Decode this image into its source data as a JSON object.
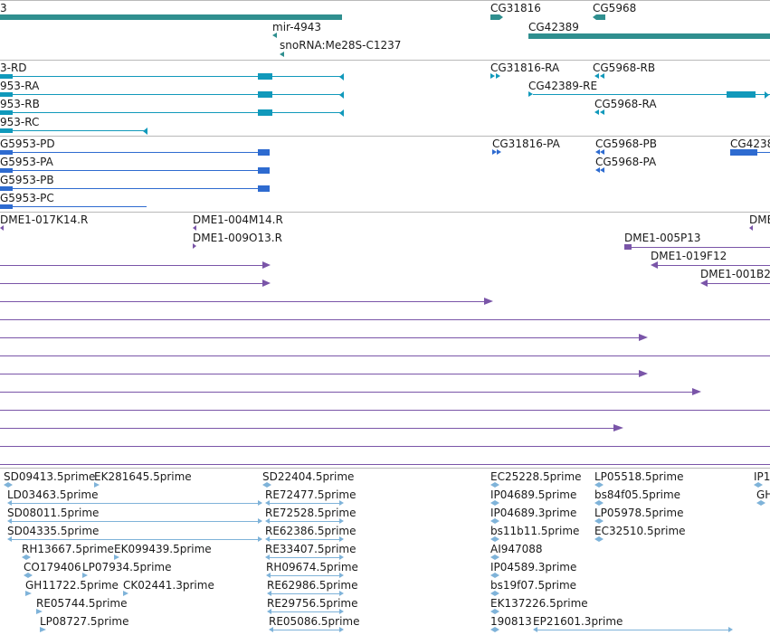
{
  "colors": {
    "gene": "#2f8f8f",
    "mrna": "#1199bb",
    "cds": "#2e6bd0",
    "clone": "#7a55a8",
    "est": "#7fb3d9",
    "separator": "#b9b9b9"
  },
  "tracks": {
    "genes": {
      "labels": [
        "3",
        "mir-4943",
        "snoRNA:Me28S-C1237",
        "CG31816",
        "CG5968",
        "CG42389"
      ]
    },
    "transcripts": {
      "labels": [
        "3-RD",
        "953-RA",
        "953-RB",
        "953-RC",
        "CG31816-RA",
        "CG5968-RB",
        "CG42389-RE",
        "CG5968-RA"
      ]
    },
    "cds": {
      "labels": [
        "G5953-PD",
        "G5953-PA",
        "G5953-PB",
        "G5953-PC",
        "CG31816-PA",
        "CG5968-PB",
        "CG5968-PA",
        "CG4238"
      ]
    },
    "clones": {
      "labels": [
        "DME1-017K14.R",
        "DME1-004M14.R",
        "DME1-009O13.R",
        "DME",
        "DME1-005P13",
        "DME1-019F12",
        "DME1-001B2"
      ]
    },
    "ests": {
      "labels": [
        "SD09413.5prime",
        "EK281645.5prime",
        "SD22404.5prime",
        "EC25228.5prime",
        "LP05518.5prime",
        "IP1",
        "LD03463.5prime",
        "RE72477.5prime",
        "IP04689.5prime",
        "bs84f05.5prime",
        "GH",
        "SD08011.5prime",
        "RE72528.5prime",
        "IP04689.3prime",
        "LP05978.5prime",
        "SD04335.5prime",
        "RE62386.5prime",
        "bs11b11.5prime",
        "EC32510.5prime",
        "RH13667.5prime",
        "EK099439.5prime",
        "RE33407.5prime",
        "AI947088",
        "CO179406",
        "LP07934.5prime",
        "RH09674.5prime",
        "IP04589.3prime",
        "GH11722.5prime",
        "CK02441.3prime",
        "RE62986.5prime",
        "bs19f07.5prime",
        "RE05744.5prime",
        "RE29756.5prime",
        "EK137226.5prime",
        "LP08727.5prime",
        "RE05086.5prime",
        "190813",
        "EP21601.3prime"
      ]
    }
  }
}
